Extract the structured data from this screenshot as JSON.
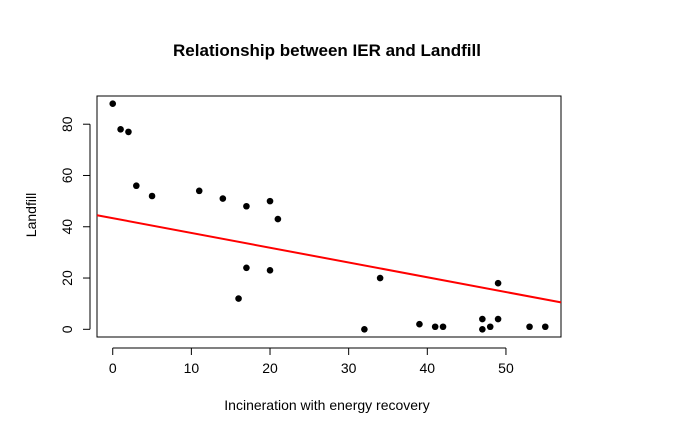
{
  "chart_data": {
    "type": "scatter",
    "title": "Relationship between IER and Landfill",
    "xlabel": "Incineration with energy recovery",
    "ylabel": "Landfill",
    "xlim": [
      -2,
      57
    ],
    "ylim": [
      -3,
      91
    ],
    "x_ticks": [
      0,
      10,
      20,
      30,
      40,
      50
    ],
    "y_ticks": [
      0,
      20,
      40,
      60,
      80
    ],
    "grid": false,
    "points": [
      {
        "x": 0,
        "y": 88
      },
      {
        "x": 1,
        "y": 78
      },
      {
        "x": 2,
        "y": 77
      },
      {
        "x": 3,
        "y": 56
      },
      {
        "x": 5,
        "y": 52
      },
      {
        "x": 11,
        "y": 54
      },
      {
        "x": 14,
        "y": 51
      },
      {
        "x": 16,
        "y": 12
      },
      {
        "x": 17,
        "y": 48
      },
      {
        "x": 17,
        "y": 24
      },
      {
        "x": 20,
        "y": 50
      },
      {
        "x": 20,
        "y": 23
      },
      {
        "x": 21,
        "y": 43
      },
      {
        "x": 32,
        "y": 0
      },
      {
        "x": 34,
        "y": 20
      },
      {
        "x": 39,
        "y": 2
      },
      {
        "x": 41,
        "y": 1
      },
      {
        "x": 42,
        "y": 1
      },
      {
        "x": 47,
        "y": 4
      },
      {
        "x": 47,
        "y": 0
      },
      {
        "x": 48,
        "y": 1
      },
      {
        "x": 49,
        "y": 18
      },
      {
        "x": 49,
        "y": 4
      },
      {
        "x": 53,
        "y": 1
      },
      {
        "x": 55,
        "y": 1
      }
    ],
    "regression_line": {
      "x_start": -2,
      "y_start": 44.5,
      "x_end": 57,
      "y_end": 10.5,
      "color": "#ff0000"
    },
    "point_color": "#000000",
    "axis_color": "#000000"
  }
}
